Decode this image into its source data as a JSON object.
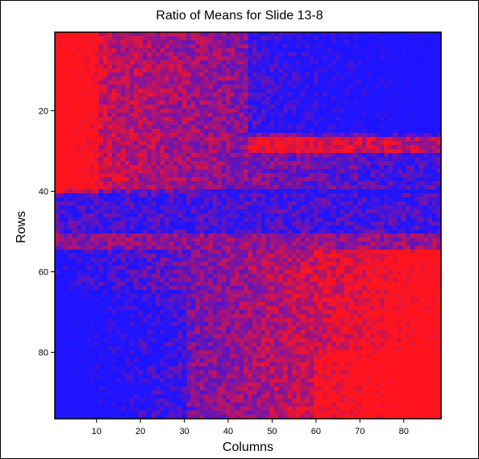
{
  "chart_data": {
    "type": "heatmap",
    "title": "Ratio of Means for Slide 13-8",
    "xlabel": "Columns",
    "ylabel": "Rows",
    "xlim": [
      0.5,
      88.5
    ],
    "ylim": [
      0.5,
      96.5
    ],
    "x_ticks": [
      "10",
      "20",
      "30",
      "40",
      "50",
      "60",
      "70",
      "80"
    ],
    "y_ticks": [
      "20",
      "40",
      "60",
      "80"
    ],
    "n_columns": 88,
    "n_rows": 96,
    "colormap": {
      "low": "#1a1aff",
      "high": "#ff1a1a"
    },
    "grid": false,
    "legend": "none",
    "value_regions": [
      {
        "name": "top-left",
        "rows": [
          1,
          40
        ],
        "columns": [
          1,
          10
        ],
        "dominant": "red"
      },
      {
        "name": "top-right",
        "rows": [
          1,
          25
        ],
        "columns": [
          45,
          88
        ],
        "dominant": "blue"
      },
      {
        "name": "mid-band",
        "rows": [
          40,
          50
        ],
        "columns": [
          1,
          88
        ],
        "dominant": "blue"
      },
      {
        "name": "row-28-streak",
        "rows": [
          27,
          30
        ],
        "columns": [
          45,
          88
        ],
        "dominant": "red"
      },
      {
        "name": "bottom-right",
        "rows": [
          60,
          96
        ],
        "columns": [
          40,
          88
        ],
        "dominant": "red"
      },
      {
        "name": "bottom-left",
        "rows": [
          65,
          96
        ],
        "columns": [
          1,
          30
        ],
        "dominant": "blue"
      }
    ]
  }
}
